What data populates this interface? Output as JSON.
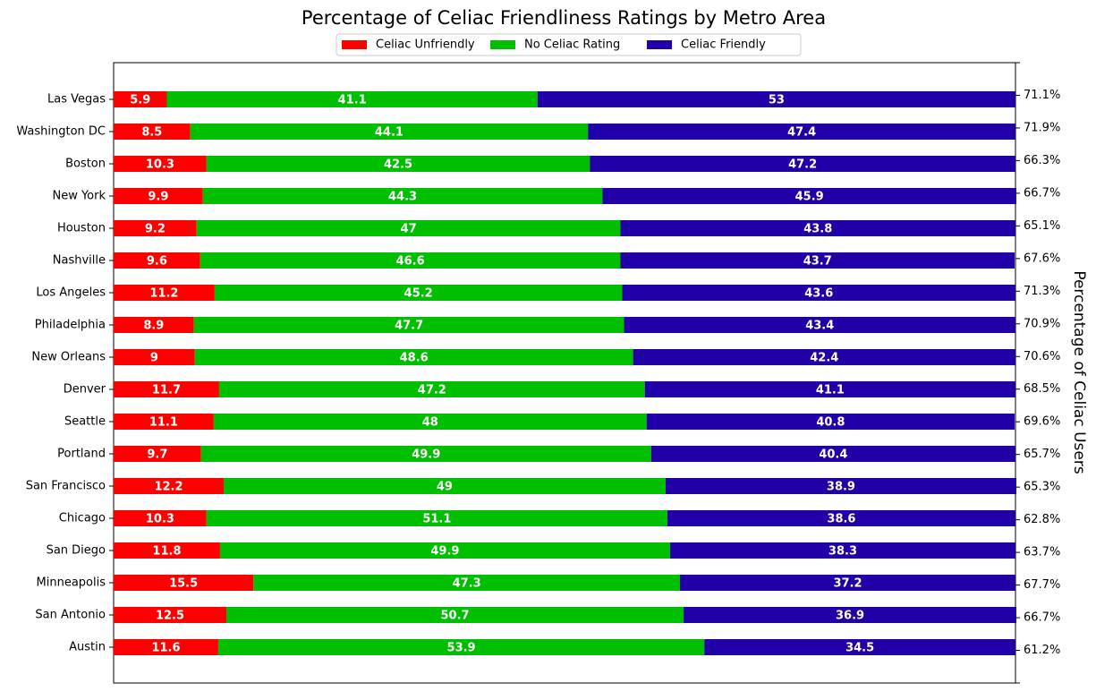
{
  "chart_data": {
    "type": "stacked-barh",
    "title": "Percentage of Celiac Friendliness Ratings by Metro Area",
    "y2_label": "Percentage of Celiac Users",
    "categories": [
      "Las Vegas",
      "Washington DC",
      "Boston",
      "New York",
      "Houston",
      "Nashville",
      "Los Angeles",
      "Philadelphia",
      "New Orleans",
      "Denver",
      "Seattle",
      "Portland",
      "San Francisco",
      "Chicago",
      "San Diego",
      "Minneapolis",
      "San Antonio",
      "Austin"
    ],
    "series": [
      {
        "name": "Celiac Unfriendly",
        "color": "#ff0000",
        "values": [
          5.9,
          8.5,
          10.3,
          9.9,
          9.2,
          9.6,
          11.2,
          8.9,
          9.0,
          11.7,
          11.1,
          9.7,
          12.2,
          10.3,
          11.8,
          15.5,
          12.5,
          11.6
        ]
      },
      {
        "name": "No Celiac Rating",
        "color": "#00bf00",
        "values": [
          41.1,
          44.1,
          42.5,
          44.3,
          47.0,
          46.6,
          45.2,
          47.7,
          48.6,
          47.2,
          48.0,
          49.9,
          49.0,
          51.1,
          49.9,
          47.3,
          50.7,
          53.9
        ]
      },
      {
        "name": "Celiac Friendly",
        "color": "#2200a8",
        "values": [
          53.0,
          47.4,
          47.2,
          45.9,
          43.8,
          43.7,
          43.6,
          43.4,
          42.4,
          41.1,
          40.8,
          40.4,
          38.9,
          38.6,
          38.3,
          37.2,
          36.9,
          34.5
        ]
      }
    ],
    "y2_categories": [
      null,
      "71.1%",
      "71.9%",
      "66.3%",
      "66.7%",
      "65.1%",
      "67.6%",
      "71.3%",
      "70.9%",
      "70.6%",
      "68.5%",
      "69.6%",
      "65.7%",
      "65.3%",
      "62.8%",
      "63.7%",
      "67.7%",
      "66.7%",
      "61.2%",
      null
    ],
    "xlim": [
      0,
      100
    ],
    "legend": "top"
  }
}
